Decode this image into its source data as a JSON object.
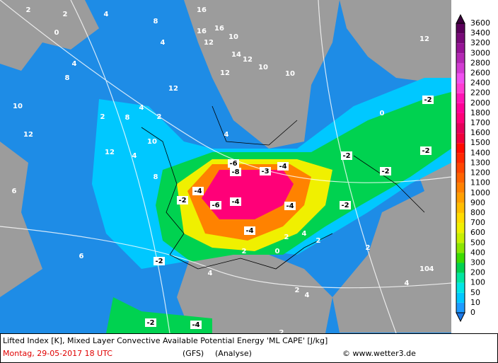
{
  "footer": {
    "line1": "Lifted Index [K], Mixed Layer Convective Available Potential Energy 'ML CAPE' [J/kg]",
    "date": "Montag, 29-05-2017  18 UTC",
    "model": "(GFS)",
    "run": "(Analyse)",
    "credit": "© www.wetter3.de"
  },
  "legend": {
    "levels": [
      0,
      10,
      50,
      100,
      200,
      300,
      400,
      500,
      600,
      700,
      800,
      900,
      1000,
      1100,
      1200,
      1300,
      1400,
      1500,
      1600,
      1700,
      1800,
      2000,
      2200,
      2400,
      2600,
      2800,
      3000,
      3200,
      3400,
      3600
    ],
    "colors": [
      "#1e9bff",
      "#00c8ff",
      "#00e6e6",
      "#00e6a0",
      "#00d250",
      "#3cdc00",
      "#8ce600",
      "#c8f000",
      "#f0f000",
      "#ffdc00",
      "#ffbe00",
      "#ffa000",
      "#ff8200",
      "#ff6400",
      "#ff4600",
      "#ff2800",
      "#ff0a00",
      "#f0003c",
      "#e6005a",
      "#ff0078",
      "#ff0096",
      "#ff14b4",
      "#ff3cd2",
      "#f050f0",
      "#d23cd2",
      "#b428b4",
      "#961496",
      "#780a78",
      "#5a005a"
    ]
  },
  "map_labels": [
    2,
    0,
    2,
    4,
    16,
    8,
    16,
    16,
    4,
    12,
    10,
    12,
    14,
    12,
    10,
    10,
    4,
    10,
    12,
    2,
    4,
    8,
    8,
    6,
    12,
    10,
    12,
    8,
    4,
    4,
    0,
    2,
    -6,
    -8,
    -4,
    -3,
    -4,
    -2,
    -6,
    -4,
    -4,
    -4,
    -2,
    -2,
    -2,
    -2,
    -2,
    -2,
    0,
    2,
    2,
    4,
    2,
    2,
    4,
    4,
    4,
    2,
    -2,
    -4,
    6,
    10,
    12,
    2,
    4
  ]
}
